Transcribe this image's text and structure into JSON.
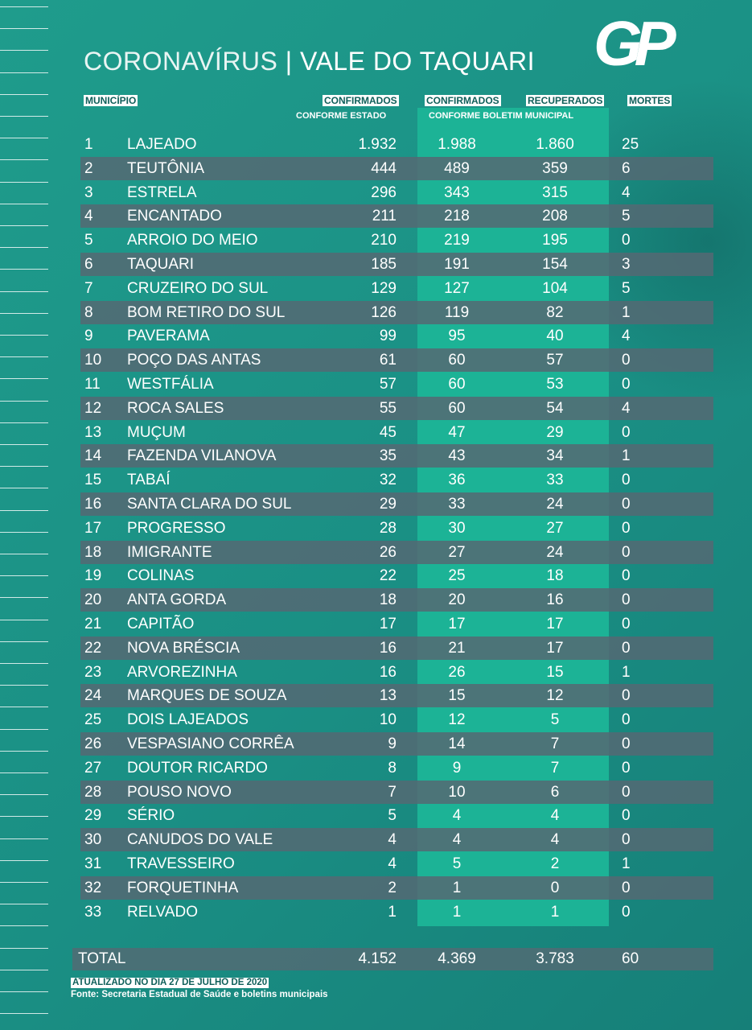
{
  "header": {
    "title_left": "CORONAVÍRUS",
    "separator": "|",
    "title_right": "VALE DO TAQUARI",
    "logo": "GP"
  },
  "table": {
    "columns": {
      "municipio": "MUNICÍPIO",
      "confirmados_estado": "CONFIRMADOS",
      "conforme_estado": "CONFORME ESTADO",
      "confirmados_municipal": "CONFIRMADOS",
      "recuperados": "RECUPERADOS",
      "conforme_boletim": "CONFORME BOLETIM MUNICIPAL",
      "mortes": "MORTES"
    },
    "rows": [
      [
        "1",
        "LAJEADO",
        "1.932",
        "1.988",
        "1.860",
        "25"
      ],
      [
        "2",
        "TEUTÔNIA",
        "444",
        "489",
        "359",
        "6"
      ],
      [
        "3",
        "ESTRELA",
        "296",
        "343",
        "315",
        "4"
      ],
      [
        "4",
        "ENCANTADO",
        "211",
        "218",
        "208",
        "5"
      ],
      [
        "5",
        "ARROIO DO MEIO",
        "210",
        "219",
        "195",
        "0"
      ],
      [
        "6",
        "TAQUARI",
        "185",
        "191",
        "154",
        "3"
      ],
      [
        "7",
        "CRUZEIRO DO SUL",
        "129",
        "127",
        "104",
        "5"
      ],
      [
        "8",
        "BOM RETIRO DO SUL",
        "126",
        "119",
        "82",
        "1"
      ],
      [
        "9",
        "PAVERAMA",
        "99",
        "95",
        "40",
        "4"
      ],
      [
        "10",
        "POÇO DAS ANTAS",
        "61",
        "60",
        "57",
        "0"
      ],
      [
        "11",
        "WESTFÁLIA",
        "57",
        "60",
        "53",
        "0"
      ],
      [
        "12",
        "ROCA SALES",
        "55",
        "60",
        "54",
        "4"
      ],
      [
        "13",
        "MUÇUM",
        "45",
        "47",
        "29",
        "0"
      ],
      [
        "14",
        "FAZENDA VILANOVA",
        "35",
        "43",
        "34",
        "1"
      ],
      [
        "15",
        "TABAÍ",
        "32",
        "36",
        "33",
        "0"
      ],
      [
        "16",
        "SANTA CLARA DO SUL",
        "29",
        "33",
        "24",
        "0"
      ],
      [
        "17",
        "PROGRESSO",
        "28",
        "30",
        "27",
        "0"
      ],
      [
        "18",
        "IMIGRANTE",
        "26",
        "27",
        "24",
        "0"
      ],
      [
        "19",
        "COLINAS",
        "22",
        "25",
        "18",
        "0"
      ],
      [
        "20",
        "ANTA GORDA",
        "18",
        "20",
        "16",
        "0"
      ],
      [
        "21",
        "CAPITÃO",
        "17",
        "17",
        "17",
        "0"
      ],
      [
        "22",
        "NOVA BRÉSCIA",
        "16",
        "21",
        "17",
        "0"
      ],
      [
        "23",
        "ARVOREZINHA",
        "16",
        "26",
        "15",
        "1"
      ],
      [
        "24",
        "MARQUES DE SOUZA",
        "13",
        "15",
        "12",
        "0"
      ],
      [
        "25",
        "DOIS LAJEADOS",
        "10",
        "12",
        "5",
        "0"
      ],
      [
        "26",
        "VESPASIANO CORRÊA",
        "9",
        "14",
        "7",
        "0"
      ],
      [
        "27",
        "DOUTOR RICARDO",
        "8",
        "9",
        "7",
        "0"
      ],
      [
        "28",
        "POUSO NOVO",
        "7",
        "10",
        "6",
        "0"
      ],
      [
        "29",
        "SÉRIO",
        "5",
        "4",
        "4",
        "0"
      ],
      [
        "30",
        "CANUDOS DO VALE",
        "4",
        "4",
        "4",
        "0"
      ],
      [
        "31",
        "TRAVESSEIRO",
        "4",
        "5",
        "2",
        "1"
      ],
      [
        "32",
        "FORQUETINHA",
        "2",
        "1",
        "0",
        "0"
      ],
      [
        "33",
        "RELVADO",
        "1",
        "1",
        "1",
        "0"
      ]
    ],
    "total": [
      "TOTAL",
      "4.152",
      "4.369",
      "3.783",
      "60"
    ]
  },
  "footer": {
    "updated": "ATUALIZADO NO DIA 27 DE JULHO DE 2020",
    "source": "Fonte: Secretaria Estadual de Saúde e boletins municipais"
  }
}
